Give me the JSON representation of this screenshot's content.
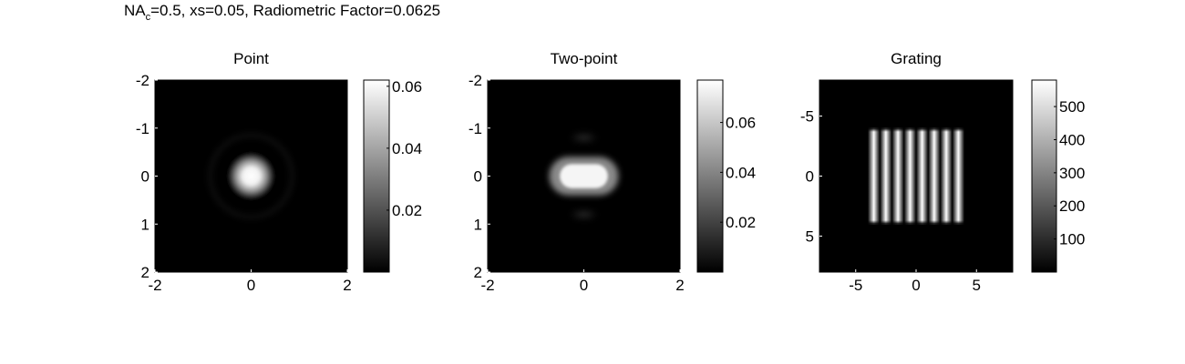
{
  "figure": {
    "title_main": "NA",
    "title_sub": "c",
    "title_rest": "=0.5, xs=0.05, Radiometric Factor=0.0625"
  },
  "chart_data": [
    {
      "type": "heatmap",
      "title": "Point",
      "colormap": "gray",
      "xlim": [
        -2,
        2
      ],
      "ylim": [
        -2,
        2
      ],
      "y_direction": "reversed",
      "xticks": [
        -2,
        0,
        2
      ],
      "yticks": [
        -2,
        -1,
        0,
        1,
        2
      ],
      "clim": [
        0,
        0.062
      ],
      "colorbar_ticks": [
        0.02,
        0.04,
        0.06
      ],
      "colorbar_tick_labels": [
        "0.02",
        "0.04",
        "0.06"
      ],
      "grid": false
    },
    {
      "type": "heatmap",
      "title": "Two-point",
      "colormap": "gray",
      "xlim": [
        -2,
        2
      ],
      "ylim": [
        -2,
        2
      ],
      "y_direction": "reversed",
      "xticks": [
        -2,
        0,
        2
      ],
      "yticks": [
        -2,
        -1,
        0,
        1,
        2
      ],
      "clim": [
        0,
        0.077
      ],
      "colorbar_ticks": [
        0.02,
        0.04,
        0.06
      ],
      "colorbar_tick_labels": [
        "0.02",
        "0.04",
        "0.06"
      ],
      "grid": false
    },
    {
      "type": "heatmap",
      "title": "Grating",
      "colormap": "gray",
      "xlim": [
        -8,
        8
      ],
      "ylim": [
        -8,
        8
      ],
      "y_direction": "reversed",
      "xticks": [
        -5,
        0,
        5
      ],
      "yticks": [
        -5,
        0,
        5
      ],
      "clim": [
        0,
        580
      ],
      "colorbar_ticks": [
        100,
        200,
        300,
        400,
        500
      ],
      "colorbar_tick_labels": [
        "100",
        "200",
        "300",
        "400",
        "500"
      ],
      "grid": false
    }
  ]
}
